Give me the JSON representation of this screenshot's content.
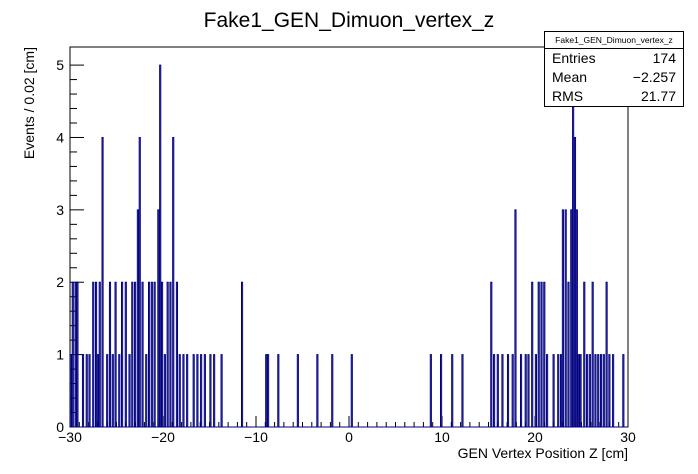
{
  "chart_data": {
    "type": "histogram",
    "title": "Fake1_GEN_Dimuon_vertex_z",
    "xlabel": "GEN Vertex Position Z [cm]",
    "ylabel": "Events / 0.02 [cm]",
    "xlim": [
      -30,
      30
    ],
    "ylim": [
      0,
      5.25
    ],
    "xticks": [
      "−30",
      "−20",
      "−10",
      "0",
      "10",
      "20",
      "30"
    ],
    "yticks": [
      "0",
      "1",
      "2",
      "3",
      "4",
      "5"
    ],
    "line_color": "#000080",
    "bins": [
      {
        "x": -29.9,
        "y": 1
      },
      {
        "x": -29.7,
        "y": 2
      },
      {
        "x": -29.4,
        "y": 2
      },
      {
        "x": -29.2,
        "y": 2
      },
      {
        "x": -28.6,
        "y": 1
      },
      {
        "x": -28.2,
        "y": 1
      },
      {
        "x": -27.9,
        "y": 1
      },
      {
        "x": -27.5,
        "y": 2
      },
      {
        "x": -27.2,
        "y": 2
      },
      {
        "x": -27.0,
        "y": 1
      },
      {
        "x": -26.8,
        "y": 2
      },
      {
        "x": -26.5,
        "y": 4
      },
      {
        "x": -26.0,
        "y": 1
      },
      {
        "x": -25.7,
        "y": 2
      },
      {
        "x": -25.4,
        "y": 1
      },
      {
        "x": -25.1,
        "y": 2
      },
      {
        "x": -24.7,
        "y": 1
      },
      {
        "x": -24.4,
        "y": 2
      },
      {
        "x": -24.0,
        "y": 2
      },
      {
        "x": -23.6,
        "y": 1
      },
      {
        "x": -23.3,
        "y": 2
      },
      {
        "x": -23.0,
        "y": 2
      },
      {
        "x": -22.7,
        "y": 3
      },
      {
        "x": -22.5,
        "y": 4
      },
      {
        "x": -22.2,
        "y": 2
      },
      {
        "x": -21.8,
        "y": 1
      },
      {
        "x": -21.5,
        "y": 2
      },
      {
        "x": -21.2,
        "y": 2
      },
      {
        "x": -20.9,
        "y": 2
      },
      {
        "x": -20.5,
        "y": 3
      },
      {
        "x": -20.3,
        "y": 5
      },
      {
        "x": -20.1,
        "y": 2
      },
      {
        "x": -19.8,
        "y": 1
      },
      {
        "x": -19.5,
        "y": 2
      },
      {
        "x": -19.2,
        "y": 2
      },
      {
        "x": -18.9,
        "y": 4
      },
      {
        "x": -18.5,
        "y": 2
      },
      {
        "x": -18.2,
        "y": 1
      },
      {
        "x": -17.8,
        "y": 1
      },
      {
        "x": -17.4,
        "y": 1
      },
      {
        "x": -16.7,
        "y": 1
      },
      {
        "x": -16.3,
        "y": 1
      },
      {
        "x": -15.9,
        "y": 1
      },
      {
        "x": -15.5,
        "y": 1
      },
      {
        "x": -14.9,
        "y": 1
      },
      {
        "x": -14.5,
        "y": 1
      },
      {
        "x": -13.7,
        "y": 1
      },
      {
        "x": -11.5,
        "y": 2
      },
      {
        "x": -8.9,
        "y": 1
      },
      {
        "x": -8.7,
        "y": 1
      },
      {
        "x": -7.6,
        "y": 1
      },
      {
        "x": -5.5,
        "y": 1
      },
      {
        "x": -3.4,
        "y": 1
      },
      {
        "x": -1.8,
        "y": 1
      },
      {
        "x": 0.3,
        "y": 1
      },
      {
        "x": 8.8,
        "y": 1
      },
      {
        "x": 9.9,
        "y": 1
      },
      {
        "x": 11.1,
        "y": 1
      },
      {
        "x": 12.2,
        "y": 1
      },
      {
        "x": 15.3,
        "y": 2
      },
      {
        "x": 15.6,
        "y": 1
      },
      {
        "x": 16.0,
        "y": 1
      },
      {
        "x": 16.5,
        "y": 1
      },
      {
        "x": 17.1,
        "y": 1
      },
      {
        "x": 17.6,
        "y": 1
      },
      {
        "x": 17.9,
        "y": 3
      },
      {
        "x": 18.5,
        "y": 1
      },
      {
        "x": 19.0,
        "y": 1
      },
      {
        "x": 19.3,
        "y": 1
      },
      {
        "x": 19.7,
        "y": 2
      },
      {
        "x": 20.1,
        "y": 1
      },
      {
        "x": 20.4,
        "y": 2
      },
      {
        "x": 20.7,
        "y": 2
      },
      {
        "x": 21.0,
        "y": 2
      },
      {
        "x": 21.3,
        "y": 1
      },
      {
        "x": 22.0,
        "y": 1
      },
      {
        "x": 22.5,
        "y": 1
      },
      {
        "x": 22.8,
        "y": 1
      },
      {
        "x": 23.0,
        "y": 3
      },
      {
        "x": 23.3,
        "y": 3
      },
      {
        "x": 23.6,
        "y": 2
      },
      {
        "x": 23.9,
        "y": 3
      },
      {
        "x": 24.1,
        "y": 5
      },
      {
        "x": 24.3,
        "y": 4
      },
      {
        "x": 24.5,
        "y": 3
      },
      {
        "x": 24.7,
        "y": 1
      },
      {
        "x": 24.9,
        "y": 1
      },
      {
        "x": 25.3,
        "y": 2
      },
      {
        "x": 25.6,
        "y": 1
      },
      {
        "x": 25.9,
        "y": 1
      },
      {
        "x": 26.2,
        "y": 2
      },
      {
        "x": 26.5,
        "y": 1
      },
      {
        "x": 26.8,
        "y": 1
      },
      {
        "x": 27.1,
        "y": 1
      },
      {
        "x": 27.4,
        "y": 1
      },
      {
        "x": 27.7,
        "y": 2
      },
      {
        "x": 28.0,
        "y": 1
      },
      {
        "x": 28.4,
        "y": 1
      },
      {
        "x": 29.5,
        "y": 1
      }
    ]
  },
  "stats": {
    "name": "Fake1_GEN_Dimuon_vertex_z",
    "entries_label": "Entries",
    "entries_value": "174",
    "mean_label": "Mean",
    "mean_value": "−2.257",
    "rms_label": "RMS",
    "rms_value": "21.77"
  }
}
